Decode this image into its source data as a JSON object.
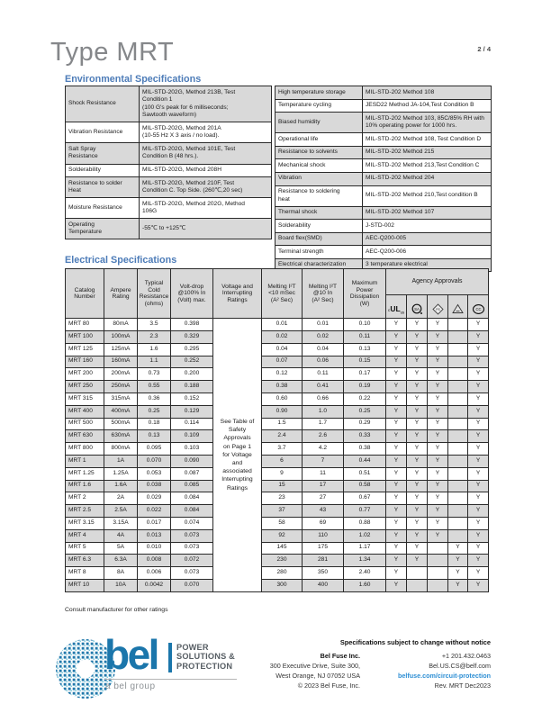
{
  "page": {
    "title": "Type MRT",
    "page_number": "2 / 4"
  },
  "colors": {
    "accent_blue": "#4d7cb8",
    "brand_blue": "#1b76ab",
    "link_blue": "#2e8fd4",
    "row_shade": "#d9d9d9"
  },
  "env": {
    "heading": "Environmental Specifications",
    "left_table": {
      "rows": [
        {
          "label": "Shock Resistance",
          "value": "MIL-STD-202G, Method 213B, Test\nCondition 1\n(100 G's peak for 6 milliseconds;\nSawtooth waveform)"
        },
        {
          "label": "Vibration Resistance",
          "value": "MIL-STD-202G, Method 201A\n(10-55 Hz X 3 axis / no load)."
        },
        {
          "label": "Salt Spray\nResistance",
          "value": "MIL-STD-202G, Method 101E, Test\nCondition B (48 hrs.)."
        },
        {
          "label": "Solderability",
          "value": "MIL-STD-202G, Method 208H"
        },
        {
          "label": "Resistance to solder\nHeat",
          "value": "MIL-STD-202G, Method 210F, Test\nCondition C. Top Side. (260℃,20 sec)"
        },
        {
          "label": "Moisture Resistance",
          "value": "MIL-STD-202G, Method 202G, Method\n106G"
        },
        {
          "label": "Operating\nTemperature",
          "value": "-55℃ to +125℃"
        }
      ]
    },
    "right_table": {
      "rows": [
        {
          "label": "High temperature storage",
          "value": "MIL-STD-202 Method 108"
        },
        {
          "label": "Temperature cycling",
          "value": "JESD22 Method JA-104,Test Condition B"
        },
        {
          "label": "Biased humidity",
          "value": "MIL-STD-202 Method 103, 85C/85% RH with\n10% operating power for 1000 hrs."
        },
        {
          "label": "Operational life",
          "value": "MIL-STD-202 Method 108, Test Condition D"
        },
        {
          "label": "Resistance to solvents",
          "value": "MIL-STD-202 Method 215"
        },
        {
          "label": "Mechanical shock",
          "value": "MIL-STD-202 Method 213,Test Condition C"
        },
        {
          "label": "Vibration",
          "value": "MIL-STD-202 Method 204"
        },
        {
          "label": "Resistance to soldering\nheat",
          "value": "MIL-STD-202 Method 210,Test condition B"
        },
        {
          "label": "Thermal shock",
          "value": "MIL-STD-202 Method 107"
        },
        {
          "label": "Solderability",
          "value": "J-STD-002"
        },
        {
          "label": "Board flex(SMD)",
          "value": "AEC-Q200-005"
        },
        {
          "label": "Terminal strength",
          "value": "AEC-Q200-006"
        },
        {
          "label": "Electrical characterization",
          "value": "3 temperature electrical"
        }
      ]
    }
  },
  "elec": {
    "heading": "Electrical Specifications",
    "columns": [
      "Catalog\nNumber",
      "Ampere\nRating",
      "Typical\nCold\nResistance\n(ohms)",
      "Volt-drop\n@100% In\n(Volt) max.",
      "Voltage and\nInterrupting\nRatings",
      "Melting I²T\n<10 mSec\n(A² Sec)",
      "Melting I²T\n@10 In\n(A² Sec)",
      "Maximum\nPower\nDissipation\n(W)"
    ],
    "agency_heading": "Agency Approvals",
    "agency_marks": [
      {
        "name": "culus-mark",
        "c": "c",
        "ul": "UL",
        "us": "us"
      },
      {
        "name": "csa-mark",
        "text": "SA"
      },
      {
        "name": "pse-diamond-mark",
        "text": "PS"
      },
      {
        "name": "safety-triangle-mark",
        "text": ""
      },
      {
        "name": "ccc-mark",
        "text": "CC"
      }
    ],
    "merged_note": "See Table of\nSafety\nApprovals\non Page 1\nfor Voltage\nand\nassociated\nInterrupting\nRatings",
    "rows": [
      {
        "catalog": "MRT 80",
        "ampere": "80mA",
        "cold_resistance": "3.5",
        "volt_drop": "0.398",
        "i2t_lt10ms": "0.01",
        "i2t_at10in": "0.01",
        "max_power": "0.10",
        "approvals": [
          "Y",
          "Y",
          "Y",
          "",
          "Y"
        ]
      },
      {
        "catalog": "MRT 100",
        "ampere": "100mA",
        "cold_resistance": "2.3",
        "volt_drop": "0.329",
        "i2t_lt10ms": "0.02",
        "i2t_at10in": "0.02",
        "max_power": "0.11",
        "approvals": [
          "Y",
          "Y",
          "Y",
          "",
          "Y"
        ]
      },
      {
        "catalog": "MRT 125",
        "ampere": "125mA",
        "cold_resistance": "1.6",
        "volt_drop": "0.295",
        "i2t_lt10ms": "0.04",
        "i2t_at10in": "0.04",
        "max_power": "0.13",
        "approvals": [
          "Y",
          "Y",
          "Y",
          "",
          "Y"
        ]
      },
      {
        "catalog": "MRT 160",
        "ampere": "160mA",
        "cold_resistance": "1.1",
        "volt_drop": "0.252",
        "i2t_lt10ms": "0.07",
        "i2t_at10in": "0.06",
        "max_power": "0.15",
        "approvals": [
          "Y",
          "Y",
          "Y",
          "",
          "Y"
        ]
      },
      {
        "catalog": "MRT 200",
        "ampere": "200mA",
        "cold_resistance": "0.73",
        "volt_drop": "0.200",
        "i2t_lt10ms": "0.12",
        "i2t_at10in": "0.11",
        "max_power": "0.17",
        "approvals": [
          "Y",
          "Y",
          "Y",
          "",
          "Y"
        ]
      },
      {
        "catalog": "MRT 250",
        "ampere": "250mA",
        "cold_resistance": "0.55",
        "volt_drop": "0.188",
        "i2t_lt10ms": "0.38",
        "i2t_at10in": "0.41",
        "max_power": "0.19",
        "approvals": [
          "Y",
          "Y",
          "Y",
          "",
          "Y"
        ]
      },
      {
        "catalog": "MRT 315",
        "ampere": "315mA",
        "cold_resistance": "0.36",
        "volt_drop": "0.152",
        "i2t_lt10ms": "0.60",
        "i2t_at10in": "0.66",
        "max_power": "0.22",
        "approvals": [
          "Y",
          "Y",
          "Y",
          "",
          "Y"
        ]
      },
      {
        "catalog": "MRT 400",
        "ampere": "400mA",
        "cold_resistance": "0.25",
        "volt_drop": "0.129",
        "i2t_lt10ms": "0.90",
        "i2t_at10in": "1.0",
        "max_power": "0.25",
        "approvals": [
          "Y",
          "Y",
          "Y",
          "",
          "Y"
        ]
      },
      {
        "catalog": "MRT 500",
        "ampere": "500mA",
        "cold_resistance": "0.18",
        "volt_drop": "0.114",
        "i2t_lt10ms": "1.5",
        "i2t_at10in": "1.7",
        "max_power": "0.29",
        "approvals": [
          "Y",
          "Y",
          "Y",
          "",
          "Y"
        ]
      },
      {
        "catalog": "MRT 630",
        "ampere": "630mA",
        "cold_resistance": "0.13",
        "volt_drop": "0.109",
        "i2t_lt10ms": "2.4",
        "i2t_at10in": "2.6",
        "max_power": "0.33",
        "approvals": [
          "Y",
          "Y",
          "Y",
          "",
          "Y"
        ]
      },
      {
        "catalog": "MRT 800",
        "ampere": "800mA",
        "cold_resistance": "0.095",
        "volt_drop": "0.103",
        "i2t_lt10ms": "3.7",
        "i2t_at10in": "4.2",
        "max_power": "0.38",
        "approvals": [
          "Y",
          "Y",
          "Y",
          "",
          "Y"
        ]
      },
      {
        "catalog": "MRT 1",
        "ampere": "1A",
        "cold_resistance": "0.070",
        "volt_drop": "0.090",
        "i2t_lt10ms": "6",
        "i2t_at10in": "7",
        "max_power": "0.44",
        "approvals": [
          "Y",
          "Y",
          "Y",
          "",
          "Y"
        ]
      },
      {
        "catalog": "MRT 1.25",
        "ampere": "1.25A",
        "cold_resistance": "0.053",
        "volt_drop": "0.087",
        "i2t_lt10ms": "9",
        "i2t_at10in": "11",
        "max_power": "0.51",
        "approvals": [
          "Y",
          "Y",
          "Y",
          "",
          "Y"
        ]
      },
      {
        "catalog": "MRT 1.6",
        "ampere": "1.6A",
        "cold_resistance": "0.038",
        "volt_drop": "0.085",
        "i2t_lt10ms": "15",
        "i2t_at10in": "17",
        "max_power": "0.58",
        "approvals": [
          "Y",
          "Y",
          "Y",
          "",
          "Y"
        ]
      },
      {
        "catalog": "MRT 2",
        "ampere": "2A",
        "cold_resistance": "0.029",
        "volt_drop": "0.084",
        "i2t_lt10ms": "23",
        "i2t_at10in": "27",
        "max_power": "0.67",
        "approvals": [
          "Y",
          "Y",
          "Y",
          "",
          "Y"
        ]
      },
      {
        "catalog": "MRT 2.5",
        "ampere": "2.5A",
        "cold_resistance": "0.022",
        "volt_drop": "0.084",
        "i2t_lt10ms": "37",
        "i2t_at10in": "43",
        "max_power": "0.77",
        "approvals": [
          "Y",
          "Y",
          "Y",
          "",
          "Y"
        ]
      },
      {
        "catalog": "MRT 3.15",
        "ampere": "3.15A",
        "cold_resistance": "0.017",
        "volt_drop": "0.074",
        "i2t_lt10ms": "58",
        "i2t_at10in": "69",
        "max_power": "0.88",
        "approvals": [
          "Y",
          "Y",
          "Y",
          "",
          "Y"
        ]
      },
      {
        "catalog": "MRT 4",
        "ampere": "4A",
        "cold_resistance": "0.013",
        "volt_drop": "0.073",
        "i2t_lt10ms": "92",
        "i2t_at10in": "110",
        "max_power": "1.02",
        "approvals": [
          "Y",
          "Y",
          "Y",
          "",
          "Y"
        ]
      },
      {
        "catalog": "MRT 5",
        "ampere": "5A",
        "cold_resistance": "0.010",
        "volt_drop": "0.073",
        "i2t_lt10ms": "145",
        "i2t_at10in": "175",
        "max_power": "1.17",
        "approvals": [
          "Y",
          "Y",
          "",
          "Y",
          "Y"
        ]
      },
      {
        "catalog": "MRT 6.3",
        "ampere": "6.3A",
        "cold_resistance": "0.008",
        "volt_drop": "0.072",
        "i2t_lt10ms": "230",
        "i2t_at10in": "281",
        "max_power": "1.34",
        "approvals": [
          "Y",
          "Y",
          "",
          "Y",
          "Y"
        ]
      },
      {
        "catalog": "MRT 8",
        "ampere": "8A",
        "cold_resistance": "0.006",
        "volt_drop": "0.073",
        "i2t_lt10ms": "280",
        "i2t_at10in": "350",
        "max_power": "2.40",
        "approvals": [
          "Y",
          "",
          "",
          "Y",
          "Y"
        ]
      },
      {
        "catalog": "MRT 10",
        "ampere": "10A",
        "cold_resistance": "0.0042",
        "volt_drop": "0.070",
        "i2t_lt10ms": "300",
        "i2t_at10in": "400",
        "max_power": "1.60",
        "approvals": [
          "Y",
          "",
          "",
          "Y",
          "Y"
        ]
      }
    ],
    "footnote": "Consult manufacturer for other ratings"
  },
  "footer": {
    "notice": "Specifications subject to change without notice",
    "company": "Bel Fuse Inc.",
    "address1": "300 Executive Drive, Suite 300,",
    "address2": "West Orange, NJ 07052 USA",
    "copyright": "© 2023 Bel Fuse, Inc.",
    "phone": "+1 201.432.0463",
    "email": "Bel.US.CS@belf.com",
    "website": "belfuse.com/circuit-protection",
    "revision": "Rev. MRT Dec2023",
    "logo": {
      "word": "bel",
      "tagline1": "POWER",
      "tagline2": "SOLUTIONS &",
      "tagline3": "PROTECTION",
      "subtext": "a bel group"
    }
  }
}
